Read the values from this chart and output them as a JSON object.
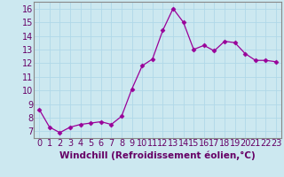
{
  "x": [
    0,
    1,
    2,
    3,
    4,
    5,
    6,
    7,
    8,
    9,
    10,
    11,
    12,
    13,
    14,
    15,
    16,
    17,
    18,
    19,
    20,
    21,
    22,
    23
  ],
  "y": [
    8.6,
    7.3,
    6.9,
    7.3,
    7.5,
    7.6,
    7.7,
    7.5,
    8.1,
    10.1,
    11.8,
    12.3,
    14.4,
    16.0,
    15.0,
    13.0,
    13.3,
    12.9,
    13.6,
    13.5,
    12.7,
    12.2,
    12.2,
    12.1
  ],
  "line_color": "#990099",
  "marker": "D",
  "marker_size": 2.5,
  "bg_color": "#cce8f0",
  "grid_color": "#b0d8e8",
  "xlabel": "Windchill (Refroidissement éolien,°C)",
  "xlabel_fontsize": 7.5,
  "tick_fontsize": 7,
  "ylim": [
    6.5,
    16.5
  ],
  "xlim": [
    -0.5,
    23.5
  ],
  "yticks": [
    7,
    8,
    9,
    10,
    11,
    12,
    13,
    14,
    15,
    16
  ],
  "xticks": [
    0,
    1,
    2,
    3,
    4,
    5,
    6,
    7,
    8,
    9,
    10,
    11,
    12,
    13,
    14,
    15,
    16,
    17,
    18,
    19,
    20,
    21,
    22,
    23
  ]
}
